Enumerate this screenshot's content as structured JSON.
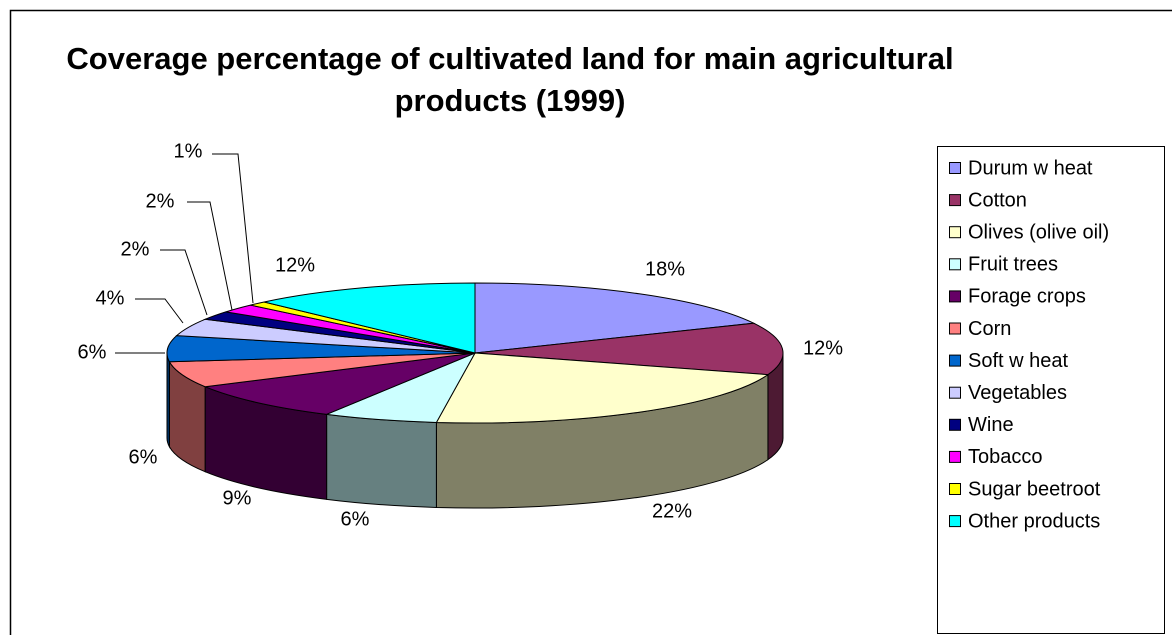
{
  "chart_data": {
    "type": "pie3d",
    "title": "Coverage percentage of cultivated land for main agricultural products (1999)",
    "categories": [
      "Durum w heat",
      "Cotton",
      "Olives (olive oil)",
      "Fruit trees",
      "Forage crops",
      "Corn",
      "Soft w heat",
      "Vegetables",
      "Wine",
      "Tobacco",
      "Sugar beetroot",
      "Other products"
    ],
    "values": [
      18,
      12,
      22,
      6,
      9,
      6,
      6,
      4,
      2,
      2,
      1,
      12
    ],
    "value_labels": [
      "18%",
      "12%",
      "22%",
      "6%",
      "9%",
      "6%",
      "6%",
      "4%",
      "2%",
      "2%",
      "1%",
      "12%"
    ],
    "colors": [
      "#9999ff",
      "#993366",
      "#ffffcc",
      "#ccffff",
      "#660066",
      "#ff8080",
      "#0066cc",
      "#ccccff",
      "#000080",
      "#ff00ff",
      "#ffff00",
      "#00ffff"
    ],
    "legend": "right"
  }
}
